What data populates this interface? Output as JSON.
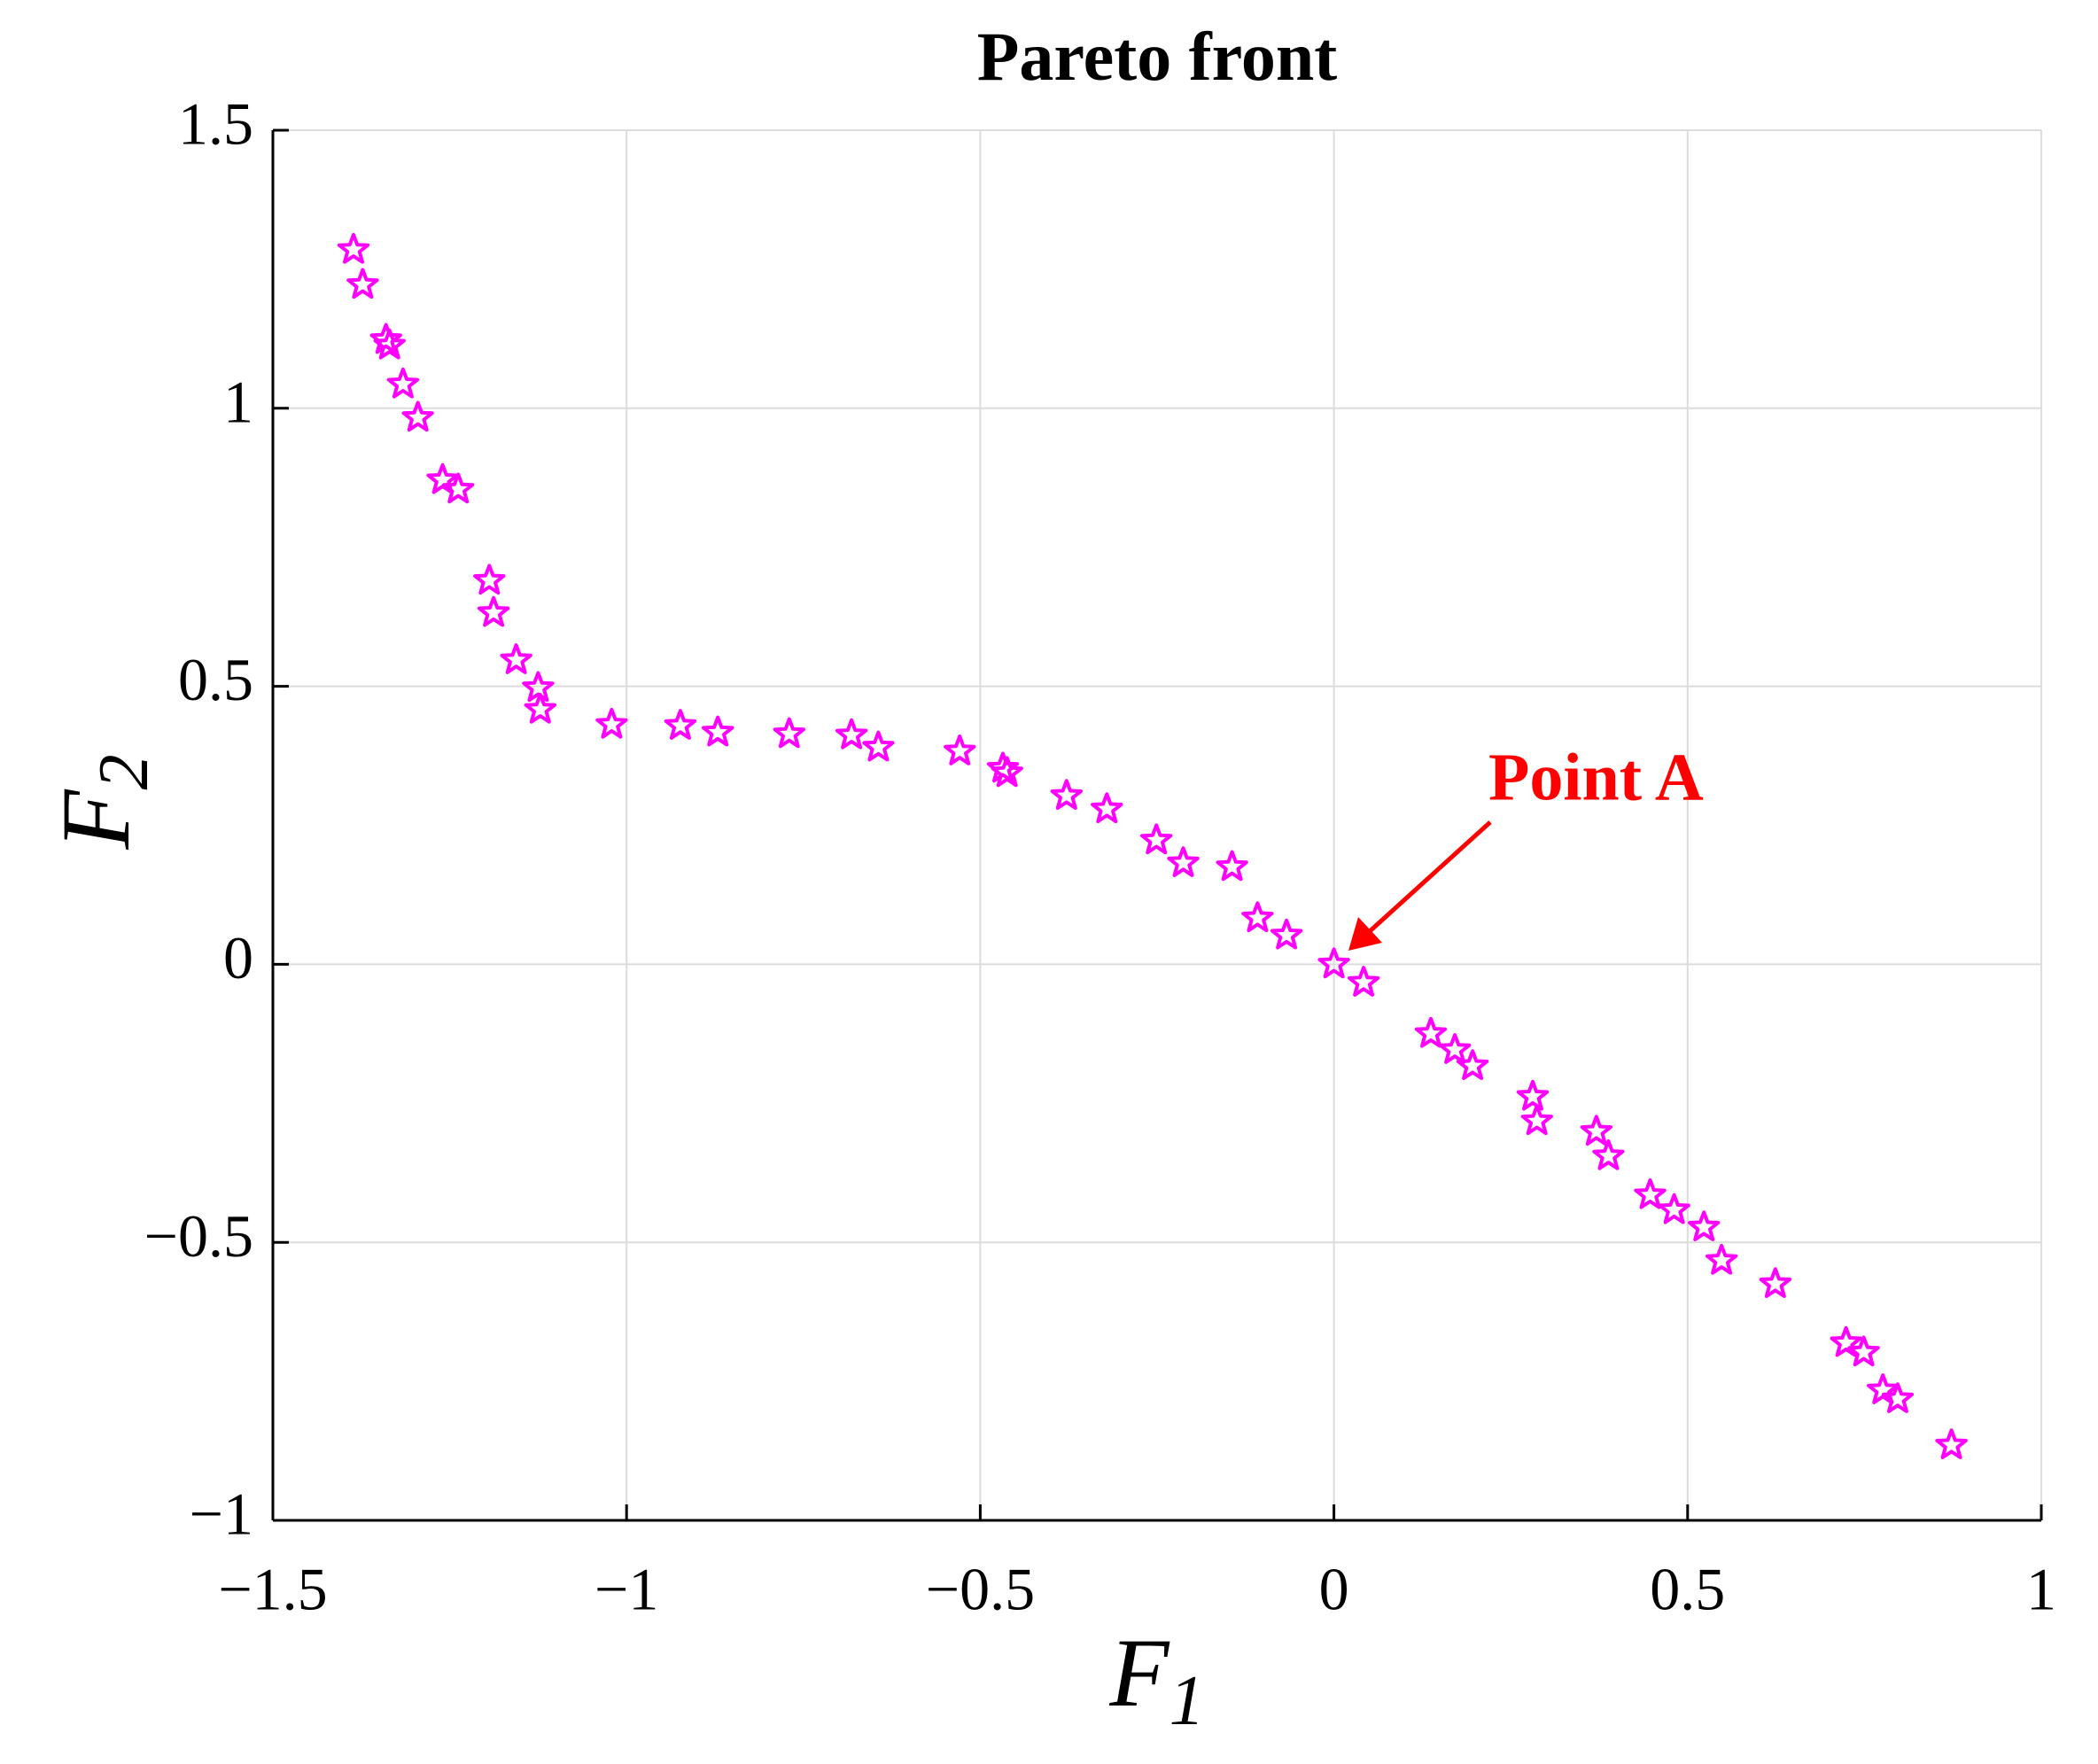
{
  "chart_data": {
    "type": "scatter",
    "title": "Pareto front",
    "xlabel": "F",
    "xlabel_sub": "1",
    "ylabel": "F",
    "ylabel_sub": "2",
    "annotation": "Point A",
    "annotation_color": "#ff0000",
    "color": "#ff00ff",
    "marker": "star",
    "grid": true,
    "xlim": [
      -1.5,
      1
    ],
    "ylim": [
      -1,
      1.5
    ],
    "xticks": [
      {
        "value": -1.5,
        "label": "−1.5"
      },
      {
        "value": -1,
        "label": "−1"
      },
      {
        "value": -0.5,
        "label": "−0.5"
      },
      0,
      0.5,
      1
    ],
    "yticks": [
      {
        "value": -1,
        "label": "−1"
      },
      {
        "value": -0.5,
        "label": "−0.5"
      },
      0,
      0.5,
      1,
      1.5
    ],
    "x": [
      -1.386,
      -1.373,
      -1.34,
      -1.335,
      -1.316,
      -1.295,
      -1.26,
      -1.238,
      -1.194,
      -1.188,
      -1.156,
      -1.125,
      -1.122,
      -1.021,
      -0.924,
      -0.871,
      -0.77,
      -0.682,
      -0.644,
      -0.529,
      -0.468,
      -0.462,
      -0.378,
      -0.321,
      -0.251,
      -0.213,
      -0.144,
      -0.108,
      -0.067,
      0,
      0.042,
      0.137,
      0.171,
      0.196,
      0.281,
      0.287,
      0.371,
      0.388,
      0.447,
      0.481,
      0.523,
      0.548,
      0.624,
      0.724,
      0.749,
      0.776,
      0.797,
      0.873
    ],
    "values": [
      1.285,
      1.222,
      1.123,
      1.113,
      1.043,
      0.983,
      0.871,
      0.854,
      0.69,
      0.632,
      0.547,
      0.497,
      0.458,
      0.431,
      0.429,
      0.417,
      0.414,
      0.412,
      0.39,
      0.383,
      0.352,
      0.344,
      0.303,
      0.279,
      0.223,
      0.182,
      0.175,
      0.083,
      0.052,
      0,
      -0.033,
      -0.125,
      -0.154,
      -0.183,
      -0.238,
      -0.282,
      -0.301,
      -0.345,
      -0.415,
      -0.442,
      -0.473,
      -0.533,
      -0.575,
      -0.681,
      -0.698,
      -0.766,
      -0.782,
      -0.865
    ]
  }
}
